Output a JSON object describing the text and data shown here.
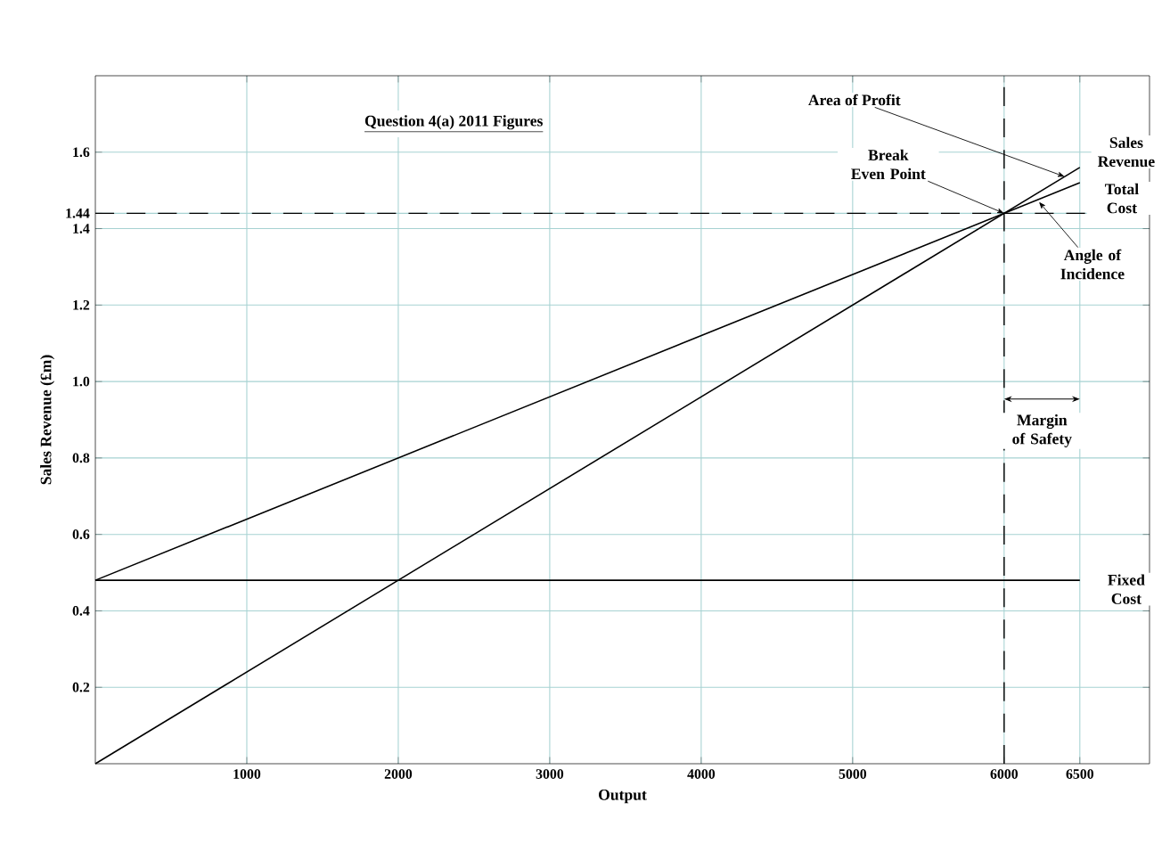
{
  "chart_data": {
    "type": "line",
    "title": "Question 4(a)    2011  Figures",
    "xlabel": "Output",
    "ylabel": "Sales Revenue (£m)",
    "series": [
      {
        "name": "Sales Revenue",
        "color": "#000000",
        "values": [
          0,
          1.56
        ]
      },
      {
        "name": "Total Cost",
        "color": "#000000",
        "values": [
          0.48,
          1.52
        ]
      },
      {
        "name": "Fixed Cost",
        "color": "#000000",
        "values": [
          0.48,
          0.48
        ]
      }
    ],
    "x": [
      0,
      6500
    ],
    "xlim": [
      0,
      6960
    ],
    "ylim": [
      0,
      1.8
    ],
    "xticks": [
      1000,
      2000,
      3000,
      4000,
      5000,
      6000,
      6500
    ],
    "yticks": [
      0.2,
      0.4,
      0.6,
      0.8,
      {
        "value": 1,
        "label": "1.0"
      },
      1.2,
      1.4,
      1.44,
      1.6
    ],
    "ref_lines": [
      {
        "axis": "y",
        "value": 1.44,
        "line_style": "dashed",
        "color": "#000000"
      },
      {
        "axis": "x",
        "value": 6000,
        "line_style": "dashed",
        "color": "#000000"
      }
    ],
    "annotations": [
      {
        "text": "Break Even Point",
        "x": 6000,
        "y": 1.44
      },
      {
        "text": "Area of Profit",
        "x": 6400,
        "y": 1.536
      },
      {
        "text": "Angle of Incidence",
        "x": 6230,
        "y": 1.47
      },
      "Margin of Safety"
    ],
    "grid": true,
    "marker": "none",
    "line_style": "solid"
  }
}
